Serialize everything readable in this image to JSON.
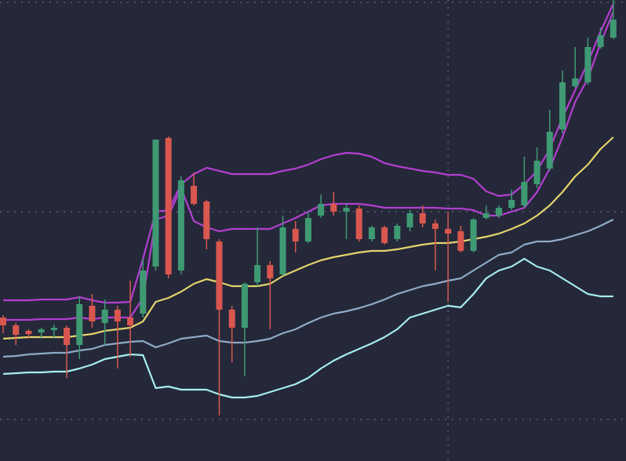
{
  "chart_data": {
    "type": "candlestick",
    "background": "#252839",
    "grid": true,
    "grid_color": "#5a5f78",
    "up_color": "#3f9a74",
    "down_color": "#d9574f",
    "x": [
      0,
      1,
      2,
      3,
      4,
      5,
      6,
      7,
      8,
      9,
      10,
      11,
      12,
      13,
      14,
      15,
      16,
      17,
      18,
      19,
      20,
      21,
      22,
      23,
      24,
      25,
      26,
      27,
      28,
      29,
      30,
      31,
      32,
      33,
      34,
      35,
      36,
      37,
      38,
      39,
      40,
      41,
      42,
      43,
      44,
      45,
      46,
      47,
      48
    ],
    "xlim": [
      -0.25,
      49
    ],
    "xticks": [
      35
    ],
    "ylim": [
      0,
      588
    ],
    "yticks": [
      53,
      318,
      585
    ],
    "open": [
      183,
      173,
      166,
      164,
      167,
      170,
      148,
      198,
      176,
      193,
      183,
      188,
      248,
      412,
      243,
      351,
      331,
      280,
      193,
      170,
      228,
      250,
      238,
      296,
      280,
      313,
      328,
      318,
      322,
      283,
      298,
      283,
      298,
      316,
      303,
      296,
      293,
      268,
      310,
      313,
      323,
      326,
      353,
      373,
      423,
      478,
      483,
      528,
      540
    ],
    "high": [
      186,
      176,
      168,
      170,
      174,
      173,
      210,
      213,
      206,
      198,
      230,
      258,
      410,
      414,
      363,
      368,
      333,
      283,
      198,
      228,
      298,
      255,
      313,
      306,
      318,
      340,
      343,
      328,
      326,
      300,
      300,
      303,
      320,
      326,
      308,
      318,
      300,
      310,
      326,
      326,
      346,
      388,
      400,
      448,
      498,
      528,
      540,
      553,
      588
    ],
    "low": [
      163,
      148,
      156,
      156,
      156,
      106,
      130,
      170,
      148,
      118,
      133,
      183,
      243,
      233,
      238,
      326,
      270,
      58,
      126,
      108,
      223,
      168,
      236,
      266,
      278,
      310,
      313,
      283,
      280,
      280,
      276,
      280,
      293,
      298,
      243,
      203,
      266,
      266,
      308,
      310,
      320,
      323,
      348,
      370,
      418,
      476,
      480,
      526,
      538
    ],
    "close": [
      173,
      161,
      162,
      168,
      170,
      148,
      200,
      178,
      193,
      178,
      173,
      243,
      410,
      238,
      358,
      328,
      283,
      193,
      170,
      226,
      250,
      233,
      298,
      280,
      310,
      328,
      318,
      323,
      283,
      298,
      278,
      300,
      316,
      303,
      296,
      290,
      268,
      308,
      316,
      323,
      333,
      356,
      383,
      420,
      483,
      488,
      528,
      543,
      563
    ],
    "series": [
      {
        "color": "#b23fd0",
        "values": [
          205,
          205,
          205,
          206,
          206,
          206,
          209,
          205,
          202,
          202,
          203,
          258,
          318,
          320,
          353,
          366,
          374,
          370,
          366,
          366,
          366,
          366,
          370,
          373,
          378,
          385,
          390,
          393,
          392,
          388,
          380,
          376,
          373,
          370,
          368,
          365,
          365,
          360,
          344,
          338,
          340,
          353,
          370,
          398,
          438,
          473,
          508,
          548,
          583
        ]
      },
      {
        "color": "#b23fd0",
        "values": [
          180,
          180,
          180,
          181,
          181,
          181,
          183,
          181,
          183,
          183,
          183,
          208,
          308,
          313,
          348,
          306,
          298,
          293,
          296,
          296,
          296,
          296,
          303,
          310,
          318,
          326,
          328,
          328,
          328,
          326,
          323,
          323,
          323,
          323,
          323,
          322,
          322,
          320,
          313,
          313,
          318,
          323,
          343,
          373,
          413,
          458,
          488,
          533,
          573
        ]
      },
      {
        "color": "#e3d46c",
        "values": [
          156,
          157,
          158,
          158,
          158,
          158,
          160,
          162,
          166,
          168,
          170,
          178,
          203,
          208,
          216,
          226,
          232,
          228,
          223,
          223,
          223,
          226,
          236,
          243,
          250,
          256,
          260,
          263,
          266,
          268,
          268,
          270,
          273,
          276,
          278,
          278,
          280,
          283,
          286,
          290,
          296,
          303,
          313,
          326,
          343,
          363,
          378,
          398,
          413
        ]
      },
      {
        "color": "#8faac8",
        "values": [
          133,
          134,
          136,
          137,
          138,
          138,
          141,
          143,
          148,
          150,
          152,
          153,
          145,
          150,
          156,
          158,
          160,
          153,
          151,
          151,
          153,
          156,
          163,
          168,
          176,
          183,
          188,
          191,
          195,
          200,
          206,
          213,
          218,
          223,
          226,
          230,
          233,
          243,
          253,
          263,
          266,
          276,
          280,
          280,
          283,
          288,
          293,
          300,
          308
        ]
      },
      {
        "color": "#a6eef0",
        "values": [
          111,
          112,
          113,
          113,
          114,
          114,
          118,
          123,
          130,
          133,
          136,
          135,
          93,
          95,
          91,
          91,
          91,
          85,
          81,
          81,
          83,
          88,
          93,
          98,
          106,
          118,
          128,
          136,
          143,
          150,
          158,
          168,
          183,
          188,
          193,
          198,
          196,
          213,
          233,
          243,
          248,
          258,
          248,
          243,
          233,
          223,
          213,
          210,
          210
        ]
      }
    ]
  }
}
